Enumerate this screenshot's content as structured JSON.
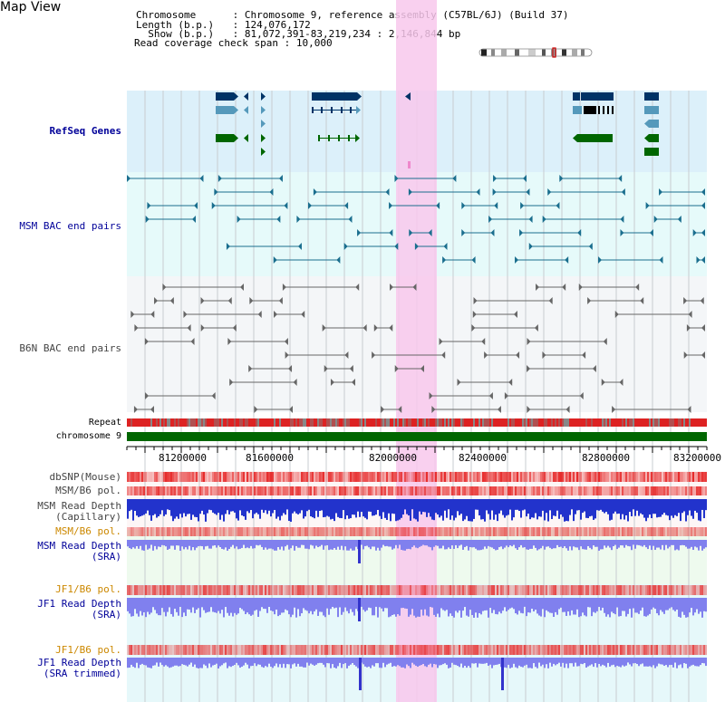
{
  "page": {
    "title": "Map View"
  },
  "header": {
    "lines": [
      {
        "key": "Chromosome",
        "sep": " : ",
        "value": "Chromosome 9, reference assembly (C57BL/6J) (Build 37)"
      },
      {
        "key": "Length (b.p.)",
        "sep": " : ",
        "value": "124,076,172"
      },
      {
        "key": "  Show (b.p.)",
        "sep": " : ",
        "value": "81,072,391-83,219,234 : 2,146,844 bp"
      },
      {
        "key": "Read coverage check span",
        "sep": " : ",
        "value": "10,000"
      }
    ]
  },
  "tracks": {
    "refseq": "RefSeq Genes",
    "msm_bac": "MSM BAC end pairs",
    "b6n_bac": "B6N BAC end pairs",
    "repeat": "Repeat",
    "chromosome": "chromosome 9",
    "dbsnp": "dbSNP(Mouse)",
    "msm_b6_pol": "MSM/B6 pol.",
    "msm_depth_cap_1": "MSM Read Depth",
    "msm_depth_cap_2": "(Capillary)",
    "msm_b6_pol_2": "MSM/B6 pol.",
    "msm_depth_sra_1": "MSM Read Depth",
    "msm_depth_sra_2": "(SRA)",
    "jf1_b6_pol": "JF1/B6 pol.",
    "jf1_depth_sra_1": "JF1 Read Depth",
    "jf1_depth_sra_2": "(SRA)",
    "jf1_b6_pol_2": "JF1/B6 pol.",
    "jf1_depth_trim_1": "JF1 Read Depth",
    "jf1_depth_trim_2": "(SRA trimmed)"
  },
  "axis": {
    "ticks": [
      "81200000",
      "81600000",
      "82000000",
      "82400000",
      "82800000",
      "83200000"
    ]
  },
  "colors": {
    "refseq_bg": "#dcf0fa",
    "bac_bg": "#e6fafa",
    "highlight": "#f8c8ec",
    "navy_gene": "#003366",
    "teal_gene": "#5599bb",
    "green_gene": "#006600",
    "bac_line": "#1a6e8e",
    "b6n_line": "#666666",
    "chromosome": "#006600",
    "depth_blue": "#3333cc",
    "depth_light": "#8080ee",
    "pol_red": "#ee4444"
  }
}
